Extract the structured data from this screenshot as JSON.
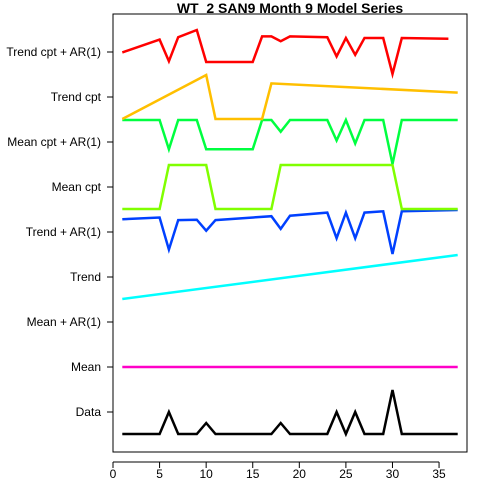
{
  "chart_data": {
    "type": "line",
    "title": "WT_2 SAN9 Month 9 Model Series",
    "xlabel": "",
    "ylabel": "",
    "xlim": [
      0,
      38
    ],
    "x_ticks": [
      0,
      5,
      10,
      15,
      20,
      25,
      30,
      35
    ],
    "grid": false,
    "legend": "none",
    "series": [
      {
        "name": "Data",
        "color": "#000000",
        "points": [
          [
            1,
            0
          ],
          [
            5,
            0
          ],
          [
            6,
            1
          ],
          [
            7,
            0
          ],
          [
            9,
            0
          ],
          [
            10,
            0.5
          ],
          [
            11,
            0
          ],
          [
            17,
            0
          ],
          [
            18,
            0.5
          ],
          [
            19,
            0
          ],
          [
            23,
            0
          ],
          [
            24,
            1
          ],
          [
            25,
            0
          ],
          [
            26,
            1
          ],
          [
            27,
            0
          ],
          [
            29,
            0
          ],
          [
            30,
            2
          ],
          [
            31,
            0
          ],
          [
            37,
            0
          ]
        ],
        "yrange": [
          0,
          2
        ]
      },
      {
        "name": "Mean",
        "color": "#FF00C8",
        "points": [
          [
            1,
            0.5
          ],
          [
            37,
            0.5
          ]
        ],
        "yrange": [
          0,
          1
        ]
      },
      {
        "name": "Mean + AR(1)",
        "color": "#FF0000",
        "points": [],
        "yrange": [
          0,
          1
        ]
      },
      {
        "name": "Trend",
        "color": "#00FFFF",
        "points": [
          [
            1,
            0
          ],
          [
            37,
            1
          ]
        ],
        "yrange": [
          0,
          1
        ]
      },
      {
        "name": "Trend + AR(1)",
        "color": "#0040FF",
        "points": [
          [
            1,
            0.79
          ],
          [
            5,
            0.83
          ],
          [
            6,
            0.1
          ],
          [
            7,
            0.77
          ],
          [
            9,
            0.78
          ],
          [
            10,
            0.53
          ],
          [
            11,
            0.77
          ],
          [
            17,
            0.86
          ],
          [
            18,
            0.57
          ],
          [
            19,
            0.87
          ],
          [
            23,
            0.94
          ],
          [
            24,
            0.36
          ],
          [
            25,
            0.94
          ],
          [
            26,
            0.36
          ],
          [
            27,
            0.94
          ],
          [
            29,
            0.97
          ],
          [
            30,
            0
          ],
          [
            31,
            0.97
          ],
          [
            37,
            1
          ]
        ],
        "yrange": [
          0,
          1
        ]
      },
      {
        "name": "Mean cpt",
        "color": "#80FF00",
        "points": [
          [
            1,
            0
          ],
          [
            5,
            0
          ],
          [
            6,
            1
          ],
          [
            9,
            1
          ],
          [
            10,
            1
          ],
          [
            11,
            0
          ],
          [
            17,
            0
          ],
          [
            18,
            1
          ],
          [
            30,
            1
          ],
          [
            31,
            0
          ],
          [
            37,
            0
          ]
        ],
        "yrange": [
          0,
          1
        ]
      },
      {
        "name": "Mean cpt + AR(1)",
        "color": "#00FF40",
        "points": [
          [
            1,
            1
          ],
          [
            5,
            1
          ],
          [
            6,
            0
          ],
          [
            7,
            1
          ],
          [
            9,
            1
          ],
          [
            10,
            0
          ],
          [
            11,
            0
          ],
          [
            15,
            0
          ],
          [
            16,
            1
          ],
          [
            17,
            1
          ],
          [
            18,
            0.6
          ],
          [
            19,
            1
          ],
          [
            23,
            1
          ],
          [
            24,
            0.3
          ],
          [
            25,
            1
          ],
          [
            26,
            0.2
          ],
          [
            27,
            1
          ],
          [
            29,
            1
          ],
          [
            30,
            -0.5
          ],
          [
            31,
            1
          ],
          [
            37,
            1
          ]
        ],
        "yrange": [
          -0.5,
          1
        ]
      },
      {
        "name": "Trend cpt",
        "color": "#FFBF00",
        "points": [
          [
            1,
            0
          ],
          [
            10,
            1
          ],
          [
            11,
            0
          ],
          [
            16,
            0
          ],
          [
            17,
            0.81
          ],
          [
            37,
            0.6
          ]
        ],
        "yrange": [
          0,
          1
        ]
      },
      {
        "name": "Trend cpt + AR(1)",
        "color": "#FF0000",
        "points": [
          [
            1,
            0.77
          ],
          [
            5,
            0.93
          ],
          [
            6,
            0.66
          ],
          [
            7,
            0.96
          ],
          [
            9,
            1.05
          ],
          [
            10,
            0.65
          ],
          [
            15,
            0.65
          ],
          [
            16,
            0.97
          ],
          [
            17,
            0.97
          ],
          [
            18,
            0.91
          ],
          [
            19,
            0.97
          ],
          [
            23,
            0.96
          ],
          [
            24,
            0.72
          ],
          [
            25,
            0.95
          ],
          [
            26,
            0.74
          ],
          [
            27,
            0.95
          ],
          [
            29,
            0.95
          ],
          [
            30,
            0.5
          ],
          [
            31,
            0.95
          ],
          [
            36,
            0.94
          ]
        ],
        "yrange": [
          0.5,
          1.05
        ]
      }
    ]
  }
}
